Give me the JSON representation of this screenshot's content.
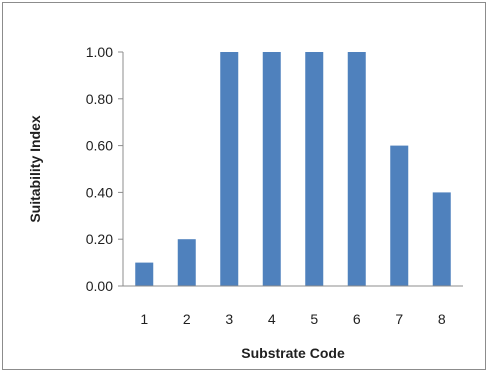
{
  "chart_data": {
    "type": "bar",
    "categories": [
      "1",
      "2",
      "3",
      "4",
      "5",
      "6",
      "7",
      "8"
    ],
    "values": [
      0.1,
      0.2,
      1.0,
      1.0,
      1.0,
      1.0,
      0.6,
      0.4
    ],
    "title": "",
    "xlabel": "Substrate Code",
    "ylabel": "Suitability Index",
    "ylim": [
      0,
      1
    ],
    "yticks": [
      "0.00",
      "0.20",
      "0.40",
      "0.60",
      "0.80",
      "1.00"
    ],
    "grid": false,
    "legend": "none",
    "bar_color": "#4f81bd",
    "axis_color": "#8c8c8c"
  }
}
